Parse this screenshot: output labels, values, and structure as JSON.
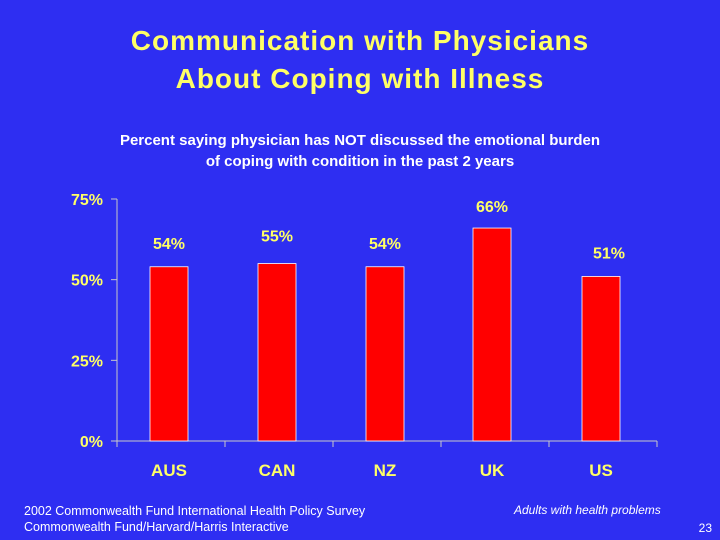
{
  "slide": {
    "title_line1": "Communication with Physicians",
    "title_line2": "About Coping with Illness",
    "subtitle_line1": "Percent saying physician has NOT discussed the emotional burden",
    "subtitle_line2": "of coping with condition in the past 2 years",
    "source_line1": "2002 Commonwealth Fund International Health Policy Survey",
    "source_line2": "Commonwealth Fund/Harvard/Harris Interactive",
    "note": "Adults with health problems",
    "page_number": "23"
  },
  "colors": {
    "background": "#2e2ef2",
    "title": "#ffff66",
    "bar": "#ff0000",
    "text": "#ffffff"
  },
  "chart_data": {
    "type": "bar",
    "categories": [
      "AUS",
      "CAN",
      "NZ",
      "UK",
      "US"
    ],
    "values": [
      54,
      55,
      54,
      66,
      51
    ],
    "data_labels": [
      "54%",
      "55%",
      "54%",
      "66%",
      "51%"
    ],
    "ylim": [
      0,
      75
    ],
    "yticks": [
      0,
      25,
      50,
      75
    ],
    "ytick_labels": [
      "0%",
      "25%",
      "50%",
      "75%"
    ],
    "grid": false,
    "legend": "none"
  }
}
